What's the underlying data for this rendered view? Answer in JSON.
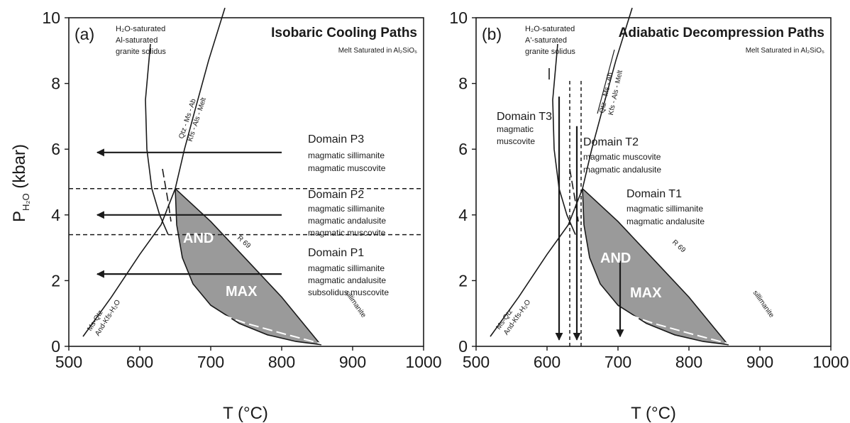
{
  "chart_data": [
    {
      "type": "line",
      "panel_label": "(a)",
      "title": "Isobaric Cooling Paths",
      "subtitle": "Melt Saturated in Al₂SiO₅",
      "xlabel": "T (°C)",
      "ylabel": "P",
      "ylabel_sub": "H₂O",
      "ylabel_unit": " (kbar)",
      "xlim": [
        500,
        1000
      ],
      "ylim": [
        0,
        10
      ],
      "xticks": [
        "500",
        "600",
        "700",
        "800",
        "900",
        "1000"
      ],
      "yticks": [
        "0",
        "2",
        "4",
        "6",
        "8",
        "10"
      ],
      "field_labels": [
        "AND",
        "MAX"
      ],
      "curve_labels": {
        "solidus": [
          "H₂O-saturated",
          "Al-saturated",
          "granite solidus"
        ],
        "melt_line_1": "Qtz - Ms - Ab",
        "melt_line_2": "Kfs - Als - Melt",
        "ms_line_1": "Ms-Qtz",
        "ms_line_2": "And-Kfs-H₂O",
        "r69": "R 69",
        "sill": "sillimanite",
        "andal": "andalusite"
      },
      "series": [
        {
          "name": "granite solidus",
          "x": [
            615,
            608,
            610,
            617,
            628,
            640
          ],
          "y": [
            9.2,
            7.5,
            6.0,
            4.8,
            4.0,
            3.4
          ]
        },
        {
          "name": "muscovite melting",
          "x": [
            650,
            663,
            678,
            697,
            720
          ],
          "y": [
            4.8,
            6.0,
            7.2,
            8.7,
            10.3
          ]
        },
        {
          "name": "muscovite dehydration",
          "x": [
            520,
            560,
            600,
            630,
            650
          ],
          "y": [
            0.3,
            1.5,
            2.8,
            3.7,
            4.8
          ]
        },
        {
          "name": "R 69",
          "x": [
            650,
            700,
            750,
            800,
            855
          ],
          "y": [
            4.8,
            3.8,
            2.65,
            1.5,
            0.05
          ]
        },
        {
          "name": "wet solidus (dashed)",
          "x": [
            640,
            648,
            660,
            680,
            710,
            750,
            800,
            856
          ],
          "y": [
            4.2,
            3.0,
            2.0,
            1.4,
            1.0,
            0.7,
            0.4,
            0.08
          ]
        }
      ],
      "domains": [
        {
          "name": "Domain P3",
          "lines": [
            "magmatic sillimanite",
            "magmatic muscovite"
          ],
          "path_p": 5.9,
          "path_from": 800,
          "path_to": 540
        },
        {
          "name": "Domain P2",
          "lines": [
            "magmatic sillimanite",
            "magmatic andalusite",
            "magmatic muscovite"
          ],
          "path_p": 4.0,
          "path_from": 800,
          "path_to": 540
        },
        {
          "name": "Domain P1",
          "lines": [
            "magmatic sillimanite",
            "magmatic andalusite",
            "subsolidus muscovite"
          ],
          "path_p": 2.2,
          "path_from": 800,
          "path_to": 540
        }
      ],
      "boundaries": [
        4.8,
        3.4
      ]
    },
    {
      "type": "line",
      "panel_label": "(b)",
      "title": "Adiabatic Decompression Paths",
      "subtitle": "Melt Saturated in Al₂SiO₅",
      "xlabel": "T (°C)",
      "xlim": [
        500,
        1000
      ],
      "ylim": [
        0,
        10
      ],
      "xticks": [
        "500",
        "600",
        "700",
        "800",
        "900",
        "1000"
      ],
      "yticks": [
        "0",
        "2",
        "4",
        "6",
        "8",
        "10"
      ],
      "field_labels": [
        "AND",
        "MAX"
      ],
      "curve_labels": {
        "solidus": [
          "H₂O-saturated",
          "A'-saturated",
          "granite solidus"
        ],
        "melt_line_1": "Qtz - Ms - Ab",
        "melt_line_2": "Kfs - Als - Melt",
        "ms_line_1": "Ms-Qtz",
        "ms_line_2": "And-Kfs-H₂O",
        "r69": "R 69",
        "sill": "sillimanite",
        "andal": "andalusite"
      },
      "domains": [
        {
          "name": "Domain T3",
          "lines": [
            "magmatic",
            "muscovite"
          ],
          "path_t": 617,
          "path_from": 7.6,
          "path_to": 0.2
        },
        {
          "name": "Domain T2",
          "lines": [
            "magmatic muscovite",
            "magmatic andalusite"
          ],
          "path_t": 642,
          "path_from": 6.7,
          "path_to": 0.2
        },
        {
          "name": "Domain T1",
          "lines": [
            "magmatic sillimanite",
            "magmatic andalusite"
          ],
          "path_t": 703,
          "path_from": 2.6,
          "path_to": 0.3
        }
      ],
      "boundaries": [
        632,
        648
      ]
    }
  ]
}
